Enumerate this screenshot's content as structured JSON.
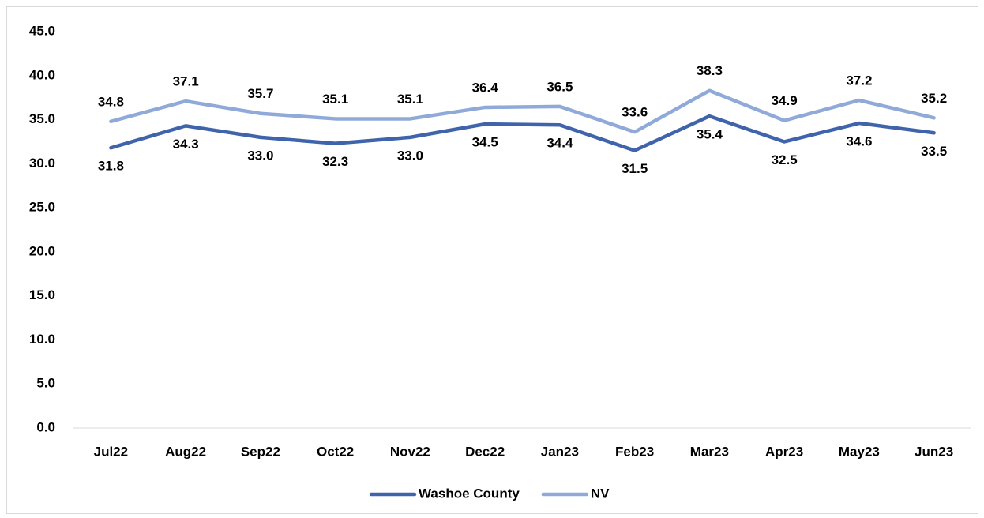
{
  "chart_data": {
    "type": "line",
    "categories": [
      "Jul22",
      "Aug22",
      "Sep22",
      "Oct22",
      "Nov22",
      "Dec22",
      "Jan23",
      "Feb23",
      "Mar23",
      "Apr23",
      "May23",
      "Jun23"
    ],
    "series": [
      {
        "name": "Washoe County",
        "color": "#3f64ab",
        "values": [
          31.8,
          34.3,
          33.0,
          32.3,
          33.0,
          34.5,
          34.4,
          31.5,
          35.4,
          32.5,
          34.6,
          33.5
        ],
        "value_labels": [
          "31.8",
          "34.3",
          "33.0",
          "32.3",
          "33.0",
          "34.5",
          "34.4",
          "31.5",
          "35.4",
          "32.5",
          "34.6",
          "33.5"
        ]
      },
      {
        "name": "NV",
        "color": "#8faad8",
        "values": [
          34.8,
          37.1,
          35.7,
          35.1,
          35.1,
          36.4,
          36.5,
          33.6,
          38.3,
          34.9,
          37.2,
          35.2
        ],
        "value_labels": [
          "34.8",
          "37.1",
          "35.7",
          "35.1",
          "35.1",
          "36.4",
          "36.5",
          "33.6",
          "38.3",
          "34.9",
          "37.2",
          "35.2"
        ]
      }
    ],
    "ylim": [
      0,
      45
    ],
    "yticks": [
      {
        "value": 0,
        "label": "0.0"
      },
      {
        "value": 5,
        "label": "5.0"
      },
      {
        "value": 10,
        "label": "10.0"
      },
      {
        "value": 15,
        "label": "15.0"
      },
      {
        "value": 20,
        "label": "20.0"
      },
      {
        "value": 25,
        "label": "25.0"
      },
      {
        "value": 30,
        "label": "30.0"
      },
      {
        "value": 35,
        "label": "35.0"
      },
      {
        "value": 40,
        "label": "40.0"
      },
      {
        "value": 45,
        "label": "45.0"
      }
    ],
    "grid": false,
    "legend": "bottom"
  }
}
